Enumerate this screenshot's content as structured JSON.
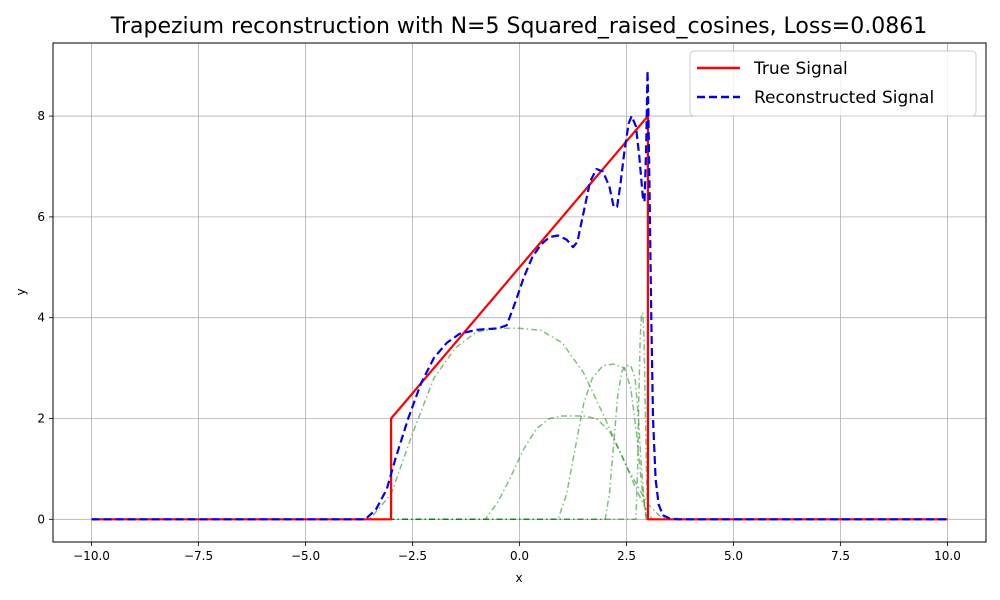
{
  "chart_data": {
    "type": "line",
    "title": "Trapezium reconstruction with N=5 Squared_raised_cosines, Loss=0.0861",
    "xlabel": "x",
    "ylabel": "y",
    "xlim": [
      -10.9,
      10.9
    ],
    "ylim": [
      -0.45,
      9.45
    ],
    "xticks": [
      -10,
      -7.5,
      -5,
      -2.5,
      0,
      2.5,
      5,
      7.5,
      10
    ],
    "xtick_labels": [
      "−10.0",
      "−7.5",
      "−5.0",
      "−2.5",
      "0.0",
      "2.5",
      "5.0",
      "7.5",
      "10.0"
    ],
    "yticks": [
      0,
      2,
      4,
      6,
      8
    ],
    "ytick_labels": [
      "0",
      "2",
      "4",
      "6",
      "8"
    ],
    "grid": true,
    "legend_position": "top-right",
    "colors": {
      "true": "#ff0000",
      "reconstructed": "#0000ee",
      "components": "#008000"
    },
    "series": [
      {
        "name": "True Signal",
        "style": "solid",
        "points": [
          [
            -10,
            0
          ],
          [
            -3,
            0
          ],
          [
            -3,
            2
          ],
          [
            3,
            8
          ],
          [
            3,
            0
          ],
          [
            10,
            0
          ]
        ]
      },
      {
        "name": "Reconstructed Signal",
        "style": "dashed",
        "points": [
          [
            -10,
            0
          ],
          [
            -3.6,
            0
          ],
          [
            -3.35,
            0.2
          ],
          [
            -3.1,
            0.6
          ],
          [
            -2.9,
            1.2
          ],
          [
            -2.6,
            2.0
          ],
          [
            -2.3,
            2.7
          ],
          [
            -2.0,
            3.2
          ],
          [
            -1.7,
            3.5
          ],
          [
            -1.4,
            3.68
          ],
          [
            -1.0,
            3.76
          ],
          [
            -0.5,
            3.79
          ],
          [
            -0.3,
            3.85
          ],
          [
            -0.1,
            4.3
          ],
          [
            0.1,
            4.8
          ],
          [
            0.3,
            5.2
          ],
          [
            0.5,
            5.45
          ],
          [
            0.7,
            5.6
          ],
          [
            0.9,
            5.63
          ],
          [
            1.1,
            5.55
          ],
          [
            1.25,
            5.4
          ],
          [
            1.35,
            5.5
          ],
          [
            1.5,
            6.1
          ],
          [
            1.65,
            6.7
          ],
          [
            1.8,
            6.95
          ],
          [
            1.95,
            6.9
          ],
          [
            2.1,
            6.6
          ],
          [
            2.2,
            6.2
          ],
          [
            2.28,
            6.2
          ],
          [
            2.35,
            6.6
          ],
          [
            2.45,
            7.3
          ],
          [
            2.55,
            7.85
          ],
          [
            2.62,
            8.0
          ],
          [
            2.72,
            7.8
          ],
          [
            2.8,
            7.2
          ],
          [
            2.88,
            6.4
          ],
          [
            2.92,
            6.3
          ],
          [
            2.96,
            7.4
          ],
          [
            2.99,
            8.9
          ],
          [
            3.01,
            8.2
          ],
          [
            3.04,
            6.4
          ],
          [
            3.08,
            4.0
          ],
          [
            3.12,
            2.0
          ],
          [
            3.18,
            0.8
          ],
          [
            3.25,
            0.3
          ],
          [
            3.35,
            0.08
          ],
          [
            3.5,
            0.02
          ],
          [
            3.7,
            0
          ],
          [
            10,
            0
          ]
        ]
      }
    ],
    "components": [
      {
        "points": [
          [
            -10,
            0
          ],
          [
            -3.5,
            0
          ],
          [
            -3.0,
            0.5
          ],
          [
            -2.5,
            1.7
          ],
          [
            -2.0,
            2.8
          ],
          [
            -1.5,
            3.4
          ],
          [
            -1.0,
            3.72
          ],
          [
            -0.5,
            3.79
          ],
          [
            0,
            3.79
          ],
          [
            0.5,
            3.75
          ],
          [
            1.0,
            3.5
          ],
          [
            1.5,
            2.9
          ],
          [
            2.0,
            2.0
          ],
          [
            2.5,
            1.05
          ],
          [
            3.0,
            0.3
          ],
          [
            3.3,
            0.05
          ],
          [
            3.5,
            0
          ],
          [
            10,
            0
          ]
        ]
      },
      {
        "points": [
          [
            -10,
            0
          ],
          [
            -0.8,
            0
          ],
          [
            -0.5,
            0.35
          ],
          [
            -0.2,
            0.85
          ],
          [
            0.1,
            1.4
          ],
          [
            0.4,
            1.8
          ],
          [
            0.7,
            2.0
          ],
          [
            1.0,
            2.05
          ],
          [
            1.5,
            2.05
          ],
          [
            1.8,
            2.0
          ],
          [
            2.1,
            1.75
          ],
          [
            2.4,
            1.25
          ],
          [
            2.7,
            0.65
          ],
          [
            2.95,
            0.2
          ],
          [
            3.1,
            0
          ],
          [
            10,
            0
          ]
        ]
      },
      {
        "points": [
          [
            -10,
            0
          ],
          [
            0.9,
            0
          ],
          [
            1.1,
            0.5
          ],
          [
            1.3,
            1.4
          ],
          [
            1.5,
            2.3
          ],
          [
            1.7,
            2.8
          ],
          [
            1.95,
            3.05
          ],
          [
            2.2,
            3.08
          ],
          [
            2.45,
            3.0
          ],
          [
            2.6,
            2.6
          ],
          [
            2.75,
            1.6
          ],
          [
            2.85,
            0.7
          ],
          [
            2.95,
            0.1
          ],
          [
            3.0,
            0
          ],
          [
            10,
            0
          ]
        ]
      },
      {
        "points": [
          [
            -10,
            0
          ],
          [
            2.0,
            0
          ],
          [
            2.1,
            0.5
          ],
          [
            2.2,
            1.5
          ],
          [
            2.3,
            2.5
          ],
          [
            2.4,
            2.95
          ],
          [
            2.5,
            3.05
          ],
          [
            2.6,
            3.05
          ],
          [
            2.7,
            2.8
          ],
          [
            2.78,
            2.0
          ],
          [
            2.85,
            1.0
          ],
          [
            2.92,
            0.3
          ],
          [
            2.96,
            0
          ],
          [
            10,
            0
          ]
        ]
      },
      {
        "points": [
          [
            -10,
            0
          ],
          [
            2.72,
            0
          ],
          [
            2.76,
            1.0
          ],
          [
            2.79,
            2.5
          ],
          [
            2.82,
            3.6
          ],
          [
            2.85,
            4.05
          ],
          [
            2.88,
            4.1
          ],
          [
            2.91,
            3.6
          ],
          [
            2.94,
            2.2
          ],
          [
            2.97,
            0.8
          ],
          [
            3.0,
            0
          ],
          [
            10,
            0
          ]
        ]
      }
    ]
  }
}
